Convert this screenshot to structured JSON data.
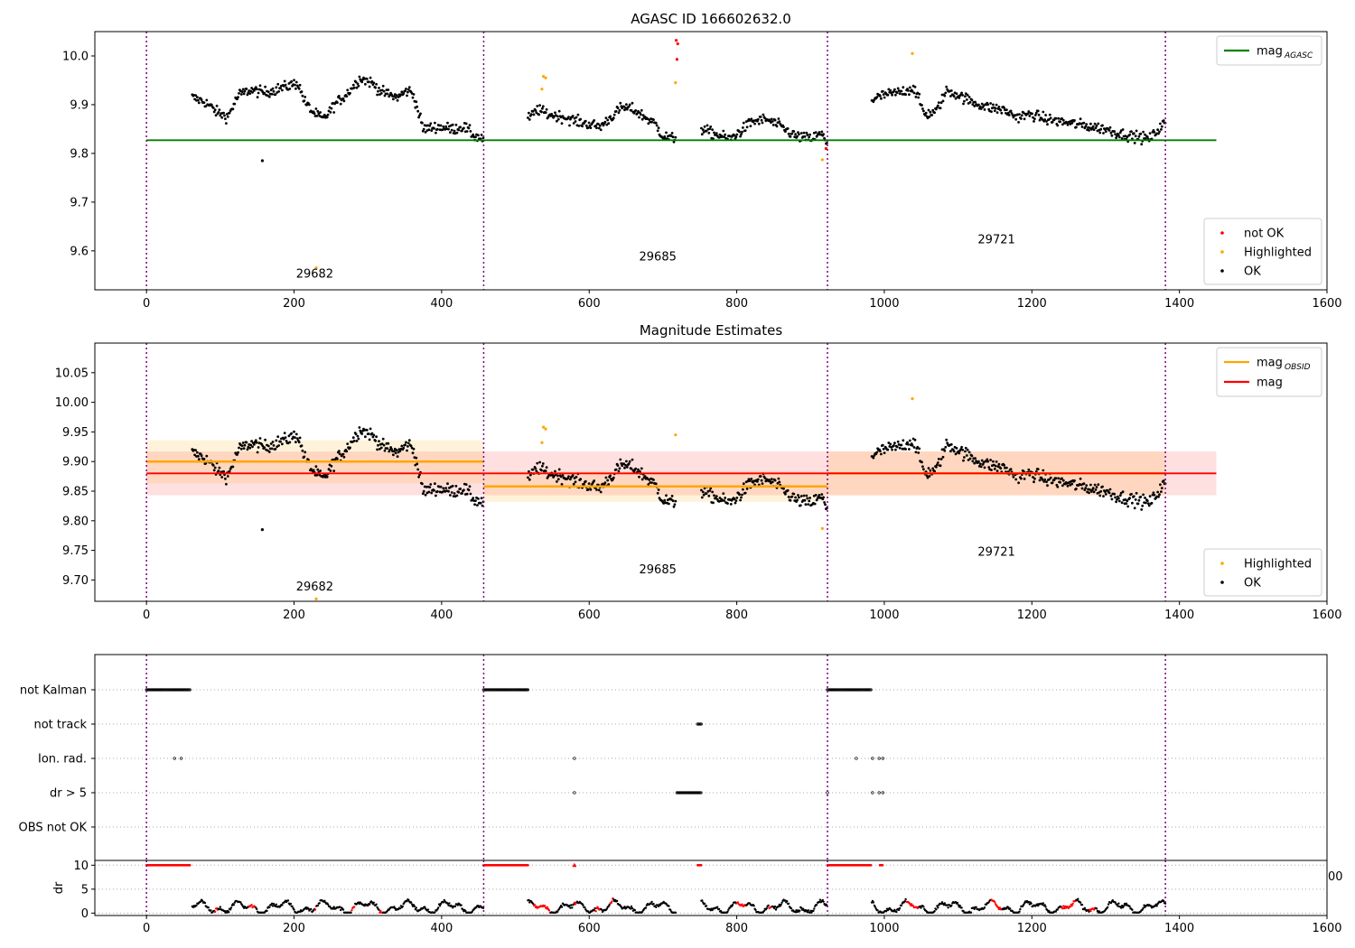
{
  "colors": {
    "ok": "#000000",
    "highlighted": "#ffa500",
    "not_ok": "#ff0000",
    "agasc": "#008000",
    "obsid_mag": "#ffa500",
    "mag": "#ff0000",
    "obs_boundary": "#800080"
  },
  "obs_boundaries": [
    0,
    457,
    923,
    1381
  ],
  "chart_data": [
    {
      "type": "scatter",
      "title": "AGASC ID 166602632.0",
      "xlim": [
        -70,
        1600
      ],
      "ylim": [
        9.52,
        10.05
      ],
      "xticks": [
        0,
        200,
        400,
        600,
        800,
        1000,
        1200,
        1400,
        1600
      ],
      "yticks": [
        9.6,
        9.7,
        9.8,
        9.9,
        10.0
      ],
      "ytick_labels": [
        "9.6",
        "9.7",
        "9.8",
        "9.9",
        "10.0"
      ],
      "obs_labels": [
        {
          "text": "29682",
          "x": 228,
          "y": 9.545
        },
        {
          "text": "29685",
          "x": 693,
          "y": 9.58
        },
        {
          "text": "29721",
          "x": 1152,
          "y": 9.615
        }
      ],
      "hlines": [
        {
          "name": "mag_AGASC",
          "y": 9.827,
          "x0": 0,
          "x1": 1450
        }
      ],
      "legend_top": [
        {
          "label": "mag",
          "sub": "AGASC",
          "kind": "line",
          "color": "#008000"
        }
      ],
      "legend_bottom": [
        {
          "label": "not OK",
          "kind": "dot",
          "color": "#ff0000"
        },
        {
          "label": "Highlighted",
          "kind": "dot",
          "color": "#ffa500"
        },
        {
          "label": "OK",
          "kind": "dot",
          "color": "#000000"
        }
      ],
      "outliers": [
        {
          "x": 157,
          "y": 9.785,
          "color": "#000000"
        },
        {
          "x": 230,
          "y": 9.565,
          "color": "#ffa500"
        },
        {
          "x": 538,
          "y": 9.958,
          "color": "#ffa500"
        },
        {
          "x": 541,
          "y": 9.955,
          "color": "#ffa500"
        },
        {
          "x": 536,
          "y": 9.932,
          "color": "#ffa500"
        },
        {
          "x": 718,
          "y": 10.032,
          "color": "#ff0000"
        },
        {
          "x": 720,
          "y": 10.025,
          "color": "#ff0000"
        },
        {
          "x": 719,
          "y": 9.993,
          "color": "#ff0000"
        },
        {
          "x": 717,
          "y": 9.945,
          "color": "#ffa500"
        },
        {
          "x": 916,
          "y": 9.787,
          "color": "#ffa500"
        },
        {
          "x": 921,
          "y": 9.81,
          "color": "#ff0000"
        },
        {
          "x": 1038,
          "y": 10.005,
          "color": "#ffa500"
        }
      ]
    },
    {
      "type": "scatter",
      "title": "Magnitude Estimates",
      "xlim": [
        -70,
        1600
      ],
      "ylim": [
        9.664,
        10.1
      ],
      "xticks": [
        0,
        200,
        400,
        600,
        800,
        1000,
        1200,
        1400,
        1600
      ],
      "yticks": [
        9.7,
        9.75,
        9.8,
        9.85,
        9.9,
        9.95,
        10.0,
        10.05
      ],
      "ytick_labels": [
        "9.70",
        "9.75",
        "9.80",
        "9.85",
        "9.90",
        "9.95",
        "10.00",
        "10.05"
      ],
      "obs_labels": [
        {
          "text": "29682",
          "x": 228,
          "y": 9.682
        },
        {
          "text": "29685",
          "x": 693,
          "y": 9.711
        },
        {
          "text": "29721",
          "x": 1152,
          "y": 9.741
        }
      ],
      "mag": {
        "value": 9.88,
        "lo": 9.843,
        "hi": 9.917,
        "x0": 0,
        "x1": 1450
      },
      "obsid_mags": [
        {
          "x0": 0,
          "x1": 457,
          "value": 9.9,
          "lo": 9.863,
          "hi": 9.936
        },
        {
          "x0": 457,
          "x1": 923,
          "value": 9.858,
          "lo": 9.832,
          "hi": 9.884
        },
        {
          "x0": 923,
          "x1": 1381,
          "value": 9.88,
          "lo": 9.843,
          "hi": 9.917
        }
      ],
      "legend_top": [
        {
          "label": "mag",
          "sub": "OBSID",
          "kind": "line",
          "color": "#ffa500"
        },
        {
          "label": "mag",
          "sub": "",
          "kind": "line",
          "color": "#ff0000"
        }
      ],
      "legend_bottom": [
        {
          "label": "Highlighted",
          "kind": "dot",
          "color": "#ffa500"
        },
        {
          "label": "OK",
          "kind": "dot",
          "color": "#000000"
        }
      ],
      "outliers": [
        {
          "x": 157,
          "y": 9.785,
          "color": "#000000"
        },
        {
          "x": 230,
          "y": 9.668,
          "color": "#ffa500"
        },
        {
          "x": 538,
          "y": 9.958,
          "color": "#ffa500"
        },
        {
          "x": 541,
          "y": 9.955,
          "color": "#ffa500"
        },
        {
          "x": 536,
          "y": 9.932,
          "color": "#ffa500"
        },
        {
          "x": 717,
          "y": 9.945,
          "color": "#ffa500"
        },
        {
          "x": 916,
          "y": 9.787,
          "color": "#ffa500"
        },
        {
          "x": 1038,
          "y": 10.006,
          "color": "#ffa500"
        }
      ]
    },
    {
      "type": "scatter",
      "title": "",
      "xlim": [
        -70,
        1600
      ],
      "flag_labels": [
        "not Kalman",
        "not track",
        "Ion. rad.",
        "dr > 5",
        "OBS not OK"
      ],
      "flags": {
        "not Kalman": [
          [
            0,
            60
          ],
          [
            457,
            517
          ],
          [
            923,
            983
          ]
        ],
        "not track": [
          [
            747,
            752
          ]
        ],
        "Ion. rad.": [
          [
            38,
            38
          ],
          [
            47,
            47
          ],
          [
            580,
            580
          ],
          [
            962,
            962
          ],
          [
            984,
            984
          ],
          [
            993,
            993
          ],
          [
            998,
            998
          ]
        ],
        "dr > 5": [
          [
            580,
            580
          ],
          [
            719,
            752
          ],
          [
            923,
            923
          ],
          [
            984,
            984
          ],
          [
            993,
            993
          ],
          [
            998,
            998
          ]
        ],
        "OBS not OK": []
      },
      "dr_ylabel": "dr",
      "dr_yticks": [
        0,
        5,
        10
      ],
      "dr_ylim": [
        -0.5,
        11
      ],
      "dr_xticks": [
        0,
        200,
        400,
        600,
        800,
        1000,
        1200,
        1400,
        1600
      ],
      "dr_saturated": [
        [
          0,
          60
        ],
        [
          457,
          517
        ],
        [
          923,
          983
        ],
        [
          747,
          752
        ],
        [
          994,
          998
        ]
      ],
      "dr_red_segments": [
        [
          93,
          97
        ],
        [
          138,
          148
        ],
        [
          228,
          231
        ],
        [
          278,
          282
        ],
        [
          316,
          320
        ],
        [
          525,
          548
        ],
        [
          580,
          583
        ],
        [
          608,
          615
        ],
        [
          628,
          633
        ],
        [
          718,
          745
        ],
        [
          800,
          812
        ],
        [
          843,
          848
        ],
        [
          1030,
          1047
        ],
        [
          1145,
          1160
        ],
        [
          1240,
          1260
        ],
        [
          1278,
          1286
        ]
      ],
      "dr_edge_text": "00"
    }
  ]
}
